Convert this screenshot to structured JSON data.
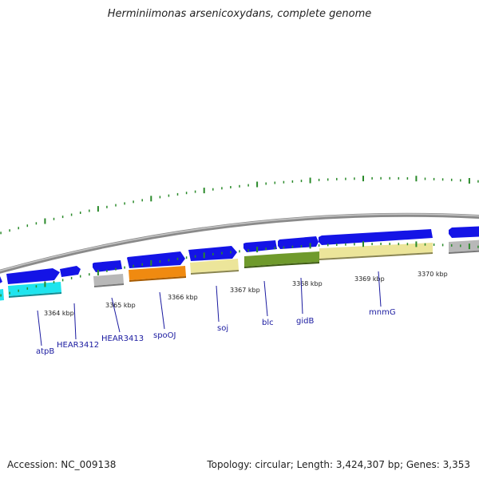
{
  "title": "Herminiimonas arsenicoxydans, complete genome",
  "accession": "Accession: NC_009138",
  "topology": "Topology: circular; Length: 3,424,307 bp; Genes: 3,353",
  "colors": {
    "backbone": "#8a8a8a",
    "forward_gene": "#1414e6",
    "tick_mark": "#2a8a2a",
    "label_line": "#1a1aa0",
    "atpB": "#1fe4ee",
    "spoOJ": "#f08a10",
    "soj": "#ece59a",
    "blc": "#6f9a2c",
    "gidB": "#6f9a2c",
    "mnmG": "#ece59a",
    "grey": "#b8b8b8"
  },
  "ticks": [
    "3364 kbp",
    "3365 kbp",
    "3366 kbp",
    "3367 kbp",
    "3368 kbp",
    "3369 kbp",
    "3370 kbp"
  ],
  "gene_labels": [
    "atpB",
    "HEAR3412",
    "HEAR3413",
    "spoOJ",
    "soj",
    "blc",
    "gidB",
    "mnmG"
  ]
}
